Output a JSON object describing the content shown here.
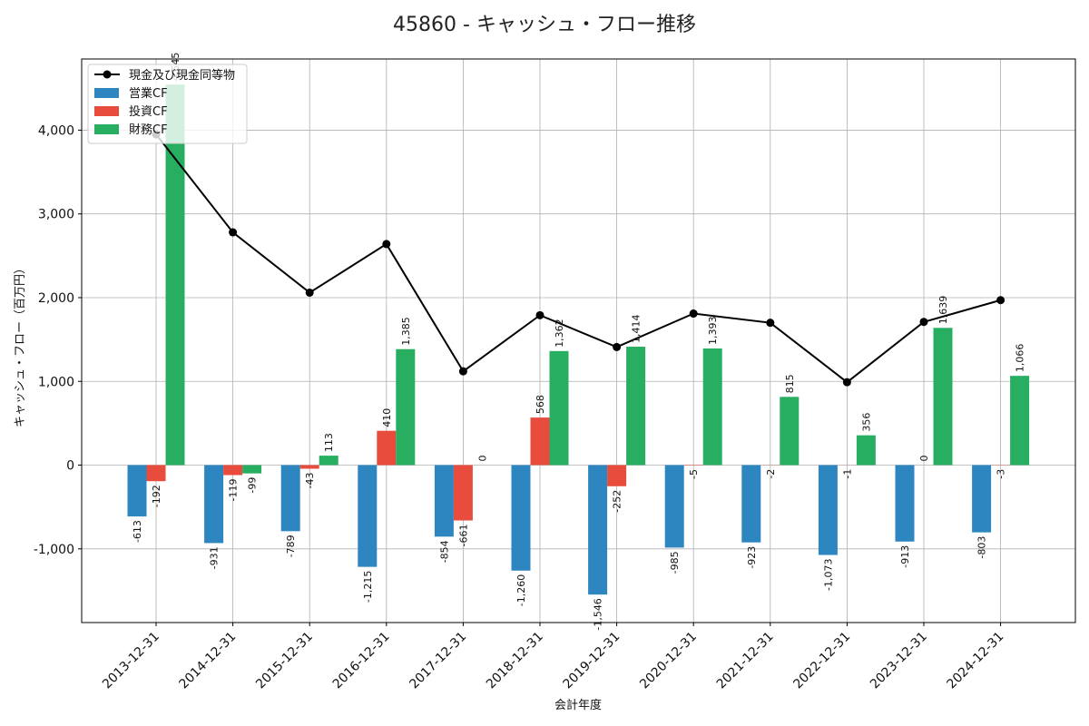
{
  "chart_data": {
    "type": "bar",
    "title": "45860 - キャッシュ・フロー推移",
    "xlabel": "会計年度",
    "ylabel": "キャッシュ・フロー（百万円）",
    "ylim": [
      -1880,
      4850
    ],
    "yticks": [
      -1000,
      0,
      1000,
      2000,
      3000,
      4000
    ],
    "ytick_labels": [
      "-1,000",
      "0",
      "1,000",
      "2,000",
      "3,000",
      "4,000"
    ],
    "grid": true,
    "legend_position": "top-left",
    "categories": [
      "2013-12-31",
      "2014-12-31",
      "2015-12-31",
      "2016-12-31",
      "2017-12-31",
      "2018-12-31",
      "2019-12-31",
      "2020-12-31",
      "2021-12-31",
      "2022-12-31",
      "2023-12-31",
      "2024-12-31"
    ],
    "series": [
      {
        "name": "営業CF",
        "kind": "bar",
        "color": "#2e86c1",
        "values": [
          -613,
          -931,
          -789,
          -1215,
          -854,
          -1260,
          -1546,
          -985,
          -923,
          -1073,
          -913,
          -803
        ],
        "labels": [
          "-613",
          "-931",
          "-789",
          "-1,215",
          "-854",
          "-1,260",
          "-1,546",
          "-985",
          "-923",
          "-1,073",
          "-913",
          "-803"
        ]
      },
      {
        "name": "投資CF",
        "kind": "bar",
        "color": "#e74c3c",
        "values": [
          -192,
          -119,
          -43,
          410,
          -661,
          568,
          -252,
          -5,
          -2,
          -1,
          0,
          -3
        ],
        "labels": [
          "-192",
          "-119",
          "-43",
          "410",
          "-661",
          "568",
          "-252",
          "-5",
          "-2",
          "-1",
          "0",
          "-3"
        ]
      },
      {
        "name": "財務CF",
        "kind": "bar",
        "color": "#27ae60",
        "values": [
          4545,
          -99,
          113,
          1385,
          0,
          1362,
          1414,
          1393,
          815,
          356,
          1639,
          1066
        ],
        "labels": [
          "4,545",
          "-99",
          "113",
          "1,385",
          "0",
          "1,362",
          "1,414",
          "1,393",
          "815",
          "356",
          "1,639",
          "1,066"
        ]
      },
      {
        "name": "現金及び現金同等物",
        "kind": "line",
        "color": "#000000",
        "values": [
          3950,
          2780,
          2060,
          2640,
          1120,
          1790,
          1410,
          1810,
          1700,
          990,
          1710,
          1970
        ]
      }
    ]
  }
}
